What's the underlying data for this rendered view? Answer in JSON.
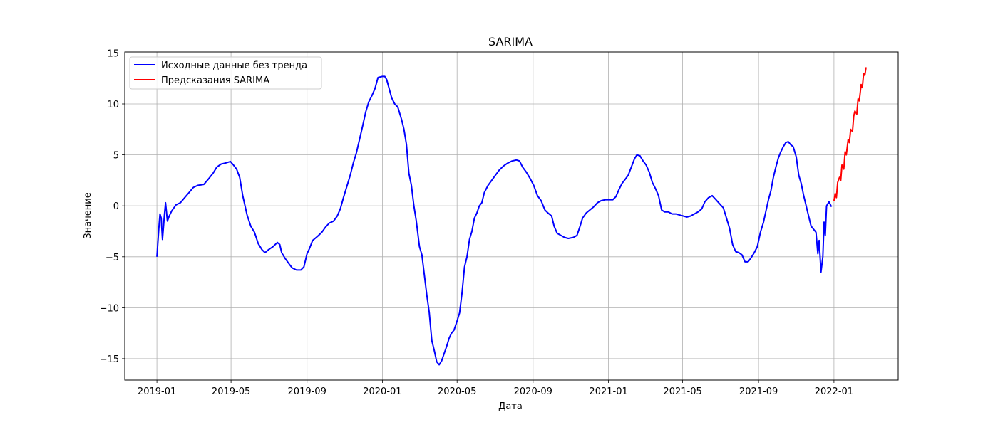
{
  "chart_data": {
    "type": "line",
    "title": "SARIMA",
    "xlabel": "Дата",
    "ylabel": "Значение",
    "xlim": [
      "2018-11-10",
      "2022-04-15"
    ],
    "ylim": [
      -17.1,
      15.1
    ],
    "x_ticks": [
      "2019-01",
      "2019-05",
      "2019-09",
      "2020-01",
      "2020-05",
      "2020-09",
      "2021-01",
      "2021-05",
      "2021-09",
      "2022-01"
    ],
    "y_ticks": [
      -15,
      -10,
      -5,
      0,
      5,
      10,
      15
    ],
    "y_tick_labels": [
      "−15",
      "−10",
      "−5",
      "0",
      "5",
      "10",
      "15"
    ],
    "grid": true,
    "legend_position": "upper-left",
    "series": [
      {
        "name": "Исходные данные без тренда",
        "color": "#0000ff",
        "points": [
          [
            "2019-01-01",
            -5.0
          ],
          [
            "2019-01-04",
            -2.3
          ],
          [
            "2019-01-06",
            -0.8
          ],
          [
            "2019-01-08",
            -1.2
          ],
          [
            "2019-01-10",
            -3.3
          ],
          [
            "2019-01-13",
            -1.0
          ],
          [
            "2019-01-15",
            0.3
          ],
          [
            "2019-01-18",
            -1.5
          ],
          [
            "2019-01-21",
            -1.0
          ],
          [
            "2019-01-25",
            -0.5
          ],
          [
            "2019-02-01",
            0.1
          ],
          [
            "2019-02-08",
            0.3
          ],
          [
            "2019-02-15",
            0.8
          ],
          [
            "2019-02-22",
            1.3
          ],
          [
            "2019-03-01",
            1.8
          ],
          [
            "2019-03-08",
            2.0
          ],
          [
            "2019-03-18",
            2.1
          ],
          [
            "2019-03-25",
            2.6
          ],
          [
            "2019-04-02",
            3.2
          ],
          [
            "2019-04-08",
            3.8
          ],
          [
            "2019-04-15",
            4.1
          ],
          [
            "2019-04-22",
            4.2
          ],
          [
            "2019-04-30",
            4.35
          ],
          [
            "2019-05-05",
            4.0
          ],
          [
            "2019-05-10",
            3.6
          ],
          [
            "2019-05-15",
            2.8
          ],
          [
            "2019-05-20",
            1.0
          ],
          [
            "2019-05-27",
            -0.9
          ],
          [
            "2019-06-02",
            -2.0
          ],
          [
            "2019-06-08",
            -2.6
          ],
          [
            "2019-06-14",
            -3.7
          ],
          [
            "2019-06-20",
            -4.3
          ],
          [
            "2019-06-25",
            -4.6
          ],
          [
            "2019-07-01",
            -4.3
          ],
          [
            "2019-07-08",
            -4.0
          ],
          [
            "2019-07-15",
            -3.6
          ],
          [
            "2019-07-19",
            -3.8
          ],
          [
            "2019-07-22",
            -4.6
          ],
          [
            "2019-07-28",
            -5.2
          ],
          [
            "2019-08-03",
            -5.7
          ],
          [
            "2019-08-08",
            -6.1
          ],
          [
            "2019-08-15",
            -6.3
          ],
          [
            "2019-08-22",
            -6.3
          ],
          [
            "2019-08-27",
            -6.0
          ],
          [
            "2019-09-01",
            -4.7
          ],
          [
            "2019-09-05",
            -4.2
          ],
          [
            "2019-09-10",
            -3.4
          ],
          [
            "2019-09-18",
            -3.0
          ],
          [
            "2019-09-25",
            -2.6
          ],
          [
            "2019-10-01",
            -2.1
          ],
          [
            "2019-10-07",
            -1.7
          ],
          [
            "2019-10-14",
            -1.5
          ],
          [
            "2019-10-20",
            -1.0
          ],
          [
            "2019-10-25",
            -0.3
          ],
          [
            "2019-10-30",
            0.8
          ],
          [
            "2019-11-05",
            2.0
          ],
          [
            "2019-11-10",
            3.0
          ],
          [
            "2019-11-15",
            4.2
          ],
          [
            "2019-11-20",
            5.2
          ],
          [
            "2019-11-25",
            6.5
          ],
          [
            "2019-11-30",
            7.8
          ],
          [
            "2019-12-05",
            9.2
          ],
          [
            "2019-12-10",
            10.2
          ],
          [
            "2019-12-15",
            10.8
          ],
          [
            "2019-12-20",
            11.5
          ],
          [
            "2019-12-25",
            12.6
          ],
          [
            "2020-01-01",
            12.7
          ],
          [
            "2020-01-05",
            12.7
          ],
          [
            "2020-01-08",
            12.4
          ],
          [
            "2020-01-12",
            11.5
          ],
          [
            "2020-01-16",
            10.6
          ],
          [
            "2020-01-21",
            10.0
          ],
          [
            "2020-01-26",
            9.7
          ],
          [
            "2020-02-01",
            8.5
          ],
          [
            "2020-02-05",
            7.5
          ],
          [
            "2020-02-09",
            6.0
          ],
          [
            "2020-02-13",
            3.2
          ],
          [
            "2020-02-17",
            2.0
          ],
          [
            "2020-02-21",
            0.0
          ],
          [
            "2020-02-25",
            -1.5
          ],
          [
            "2020-03-01",
            -4.0
          ],
          [
            "2020-03-05",
            -4.8
          ],
          [
            "2020-03-09",
            -6.8
          ],
          [
            "2020-03-13",
            -8.8
          ],
          [
            "2020-03-17",
            -10.5
          ],
          [
            "2020-03-21",
            -13.2
          ],
          [
            "2020-03-25",
            -14.2
          ],
          [
            "2020-03-29",
            -15.3
          ],
          [
            "2020-04-02",
            -15.6
          ],
          [
            "2020-04-06",
            -15.2
          ],
          [
            "2020-04-10",
            -14.5
          ],
          [
            "2020-04-14",
            -13.8
          ],
          [
            "2020-04-18",
            -13.0
          ],
          [
            "2020-04-22",
            -12.5
          ],
          [
            "2020-04-26",
            -12.2
          ],
          [
            "2020-05-01",
            -11.3
          ],
          [
            "2020-05-05",
            -10.5
          ],
          [
            "2020-05-09",
            -8.5
          ],
          [
            "2020-05-13",
            -6.0
          ],
          [
            "2020-05-17",
            -5.0
          ],
          [
            "2020-05-21",
            -3.3
          ],
          [
            "2020-05-25",
            -2.5
          ],
          [
            "2020-05-29",
            -1.2
          ],
          [
            "2020-06-02",
            -0.7
          ],
          [
            "2020-06-06",
            0.0
          ],
          [
            "2020-06-10",
            0.3
          ],
          [
            "2020-06-14",
            1.3
          ],
          [
            "2020-06-20",
            2.0
          ],
          [
            "2020-06-26",
            2.5
          ],
          [
            "2020-07-02",
            3.0
          ],
          [
            "2020-07-08",
            3.5
          ],
          [
            "2020-07-15",
            3.9
          ],
          [
            "2020-07-22",
            4.2
          ],
          [
            "2020-07-29",
            4.4
          ],
          [
            "2020-08-05",
            4.5
          ],
          [
            "2020-08-10",
            4.4
          ],
          [
            "2020-08-15",
            3.8
          ],
          [
            "2020-08-21",
            3.3
          ],
          [
            "2020-08-27",
            2.7
          ],
          [
            "2020-09-02",
            2.0
          ],
          [
            "2020-09-08",
            1.0
          ],
          [
            "2020-09-14",
            0.5
          ],
          [
            "2020-09-20",
            -0.4
          ],
          [
            "2020-09-25",
            -0.7
          ],
          [
            "2020-10-01",
            -1.0
          ],
          [
            "2020-10-05",
            -2.0
          ],
          [
            "2020-10-10",
            -2.7
          ],
          [
            "2020-10-16",
            -2.9
          ],
          [
            "2020-10-22",
            -3.1
          ],
          [
            "2020-10-28",
            -3.2
          ],
          [
            "2020-11-05",
            -3.1
          ],
          [
            "2020-11-11",
            -2.9
          ],
          [
            "2020-11-16",
            -2.0
          ],
          [
            "2020-11-20",
            -1.2
          ],
          [
            "2020-11-26",
            -0.7
          ],
          [
            "2020-12-02",
            -0.4
          ],
          [
            "2020-12-08",
            -0.1
          ],
          [
            "2020-12-14",
            0.3
          ],
          [
            "2020-12-20",
            0.5
          ],
          [
            "2020-12-27",
            0.6
          ],
          [
            "2021-01-03",
            0.6
          ],
          [
            "2021-01-08",
            0.6
          ],
          [
            "2021-01-13",
            0.9
          ],
          [
            "2021-01-18",
            1.6
          ],
          [
            "2021-01-23",
            2.2
          ],
          [
            "2021-01-28",
            2.6
          ],
          [
            "2021-02-02",
            3.0
          ],
          [
            "2021-02-07",
            3.8
          ],
          [
            "2021-02-12",
            4.6
          ],
          [
            "2021-02-16",
            5.0
          ],
          [
            "2021-02-21",
            4.9
          ],
          [
            "2021-02-26",
            4.4
          ],
          [
            "2021-03-03",
            4.0
          ],
          [
            "2021-03-08",
            3.3
          ],
          [
            "2021-03-13",
            2.3
          ],
          [
            "2021-03-18",
            1.7
          ],
          [
            "2021-03-23",
            1.0
          ],
          [
            "2021-03-28",
            -0.4
          ],
          [
            "2021-04-02",
            -0.6
          ],
          [
            "2021-04-08",
            -0.6
          ],
          [
            "2021-04-14",
            -0.8
          ],
          [
            "2021-04-20",
            -0.8
          ],
          [
            "2021-04-26",
            -0.9
          ],
          [
            "2021-05-02",
            -1.0
          ],
          [
            "2021-05-08",
            -1.1
          ],
          [
            "2021-05-14",
            -1.0
          ],
          [
            "2021-05-20",
            -0.8
          ],
          [
            "2021-05-26",
            -0.6
          ],
          [
            "2021-06-01",
            -0.3
          ],
          [
            "2021-06-06",
            0.4
          ],
          [
            "2021-06-12",
            0.8
          ],
          [
            "2021-06-18",
            1.0
          ],
          [
            "2021-06-24",
            0.6
          ],
          [
            "2021-06-30",
            0.2
          ],
          [
            "2021-07-06",
            -0.2
          ],
          [
            "2021-07-11",
            -1.2
          ],
          [
            "2021-07-16",
            -2.2
          ],
          [
            "2021-07-21",
            -3.8
          ],
          [
            "2021-07-26",
            -4.5
          ],
          [
            "2021-07-31",
            -4.6
          ],
          [
            "2021-08-05",
            -4.8
          ],
          [
            "2021-08-10",
            -5.5
          ],
          [
            "2021-08-15",
            -5.5
          ],
          [
            "2021-08-20",
            -5.1
          ],
          [
            "2021-08-25",
            -4.6
          ],
          [
            "2021-08-30",
            -4.0
          ],
          [
            "2021-09-04",
            -2.6
          ],
          [
            "2021-09-09",
            -1.6
          ],
          [
            "2021-09-13",
            -0.5
          ],
          [
            "2021-09-17",
            0.6
          ],
          [
            "2021-09-21",
            1.5
          ],
          [
            "2021-09-25",
            2.8
          ],
          [
            "2021-09-29",
            3.8
          ],
          [
            "2021-10-03",
            4.7
          ],
          [
            "2021-10-07",
            5.3
          ],
          [
            "2021-10-11",
            5.8
          ],
          [
            "2021-10-15",
            6.2
          ],
          [
            "2021-10-19",
            6.3
          ],
          [
            "2021-10-23",
            6.0
          ],
          [
            "2021-10-27",
            5.8
          ],
          [
            "2021-11-01",
            4.8
          ],
          [
            "2021-11-05",
            3.0
          ],
          [
            "2021-11-09",
            2.2
          ],
          [
            "2021-11-13",
            1.0
          ],
          [
            "2021-11-17",
            0.0
          ],
          [
            "2021-11-21",
            -1.0
          ],
          [
            "2021-11-25",
            -2.0
          ],
          [
            "2021-11-29",
            -2.3
          ],
          [
            "2021-12-03",
            -2.6
          ],
          [
            "2021-12-06",
            -4.7
          ],
          [
            "2021-12-08",
            -3.4
          ],
          [
            "2021-12-11",
            -6.5
          ],
          [
            "2021-12-14",
            -5.0
          ],
          [
            "2021-12-16",
            -1.6
          ],
          [
            "2021-12-18",
            -2.9
          ],
          [
            "2021-12-20",
            0.0
          ],
          [
            "2021-12-24",
            0.4
          ],
          [
            "2021-12-28",
            -0.1
          ]
        ]
      },
      {
        "name": "Предсказания SARIMA",
        "color": "#ff0000",
        "points": [
          [
            "2022-01-01",
            0.5
          ],
          [
            "2022-01-03",
            1.2
          ],
          [
            "2022-01-05",
            0.8
          ],
          [
            "2022-01-07",
            2.3
          ],
          [
            "2022-01-10",
            2.8
          ],
          [
            "2022-01-12",
            2.5
          ],
          [
            "2022-01-14",
            4.0
          ],
          [
            "2022-01-17",
            3.6
          ],
          [
            "2022-01-19",
            5.3
          ],
          [
            "2022-01-21",
            5.0
          ],
          [
            "2022-01-24",
            6.5
          ],
          [
            "2022-01-26",
            6.2
          ],
          [
            "2022-01-28",
            7.5
          ],
          [
            "2022-01-31",
            7.3
          ],
          [
            "2022-02-02",
            8.8
          ],
          [
            "2022-02-04",
            9.3
          ],
          [
            "2022-02-07",
            9.0
          ],
          [
            "2022-02-09",
            10.5
          ],
          [
            "2022-02-11",
            10.3
          ],
          [
            "2022-02-14",
            11.9
          ],
          [
            "2022-02-16",
            11.6
          ],
          [
            "2022-02-18",
            13.0
          ],
          [
            "2022-02-20",
            12.8
          ],
          [
            "2022-02-22",
            13.6
          ]
        ]
      }
    ]
  }
}
